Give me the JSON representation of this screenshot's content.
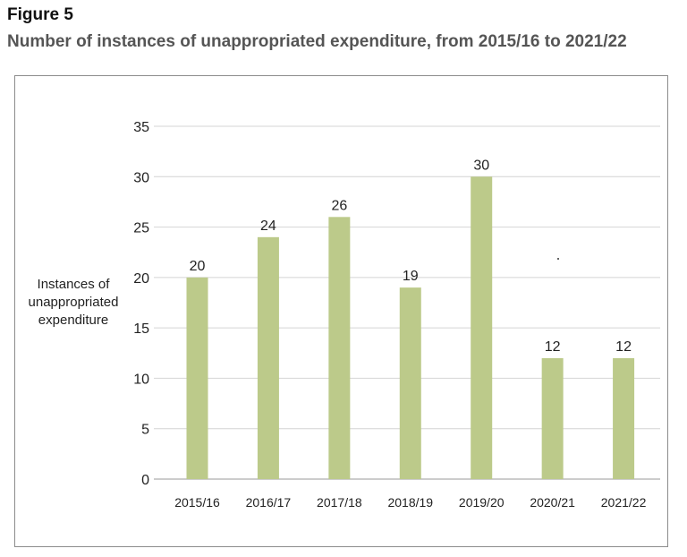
{
  "figure": {
    "label": "Figure 5",
    "title": "Number of instances of unappropriated expenditure, from 2015/16 to 2021/22"
  },
  "colors": {
    "bar": "#bcca8a",
    "grid": "#d4d4d4",
    "axis": "#9a9a9a",
    "text": "#222222",
    "frame": "#8c8c8c"
  },
  "chart_data": {
    "type": "bar",
    "categories": [
      "2015/16",
      "2016/17",
      "2017/18",
      "2018/19",
      "2019/20",
      "2020/21",
      "2021/22"
    ],
    "values": [
      20,
      24,
      26,
      19,
      30,
      12,
      12
    ],
    "title": "Number of instances of unappropriated expenditure, from 2015/16 to 2021/22",
    "xlabel": "",
    "ylabel_lines": [
      "Instances of",
      "unappropriated",
      "expenditure"
    ],
    "ylim": [
      0,
      35
    ],
    "yticks": [
      0,
      5,
      10,
      15,
      20,
      25,
      30,
      35
    ],
    "grid": true,
    "legend": "none",
    "data_labels": true
  }
}
